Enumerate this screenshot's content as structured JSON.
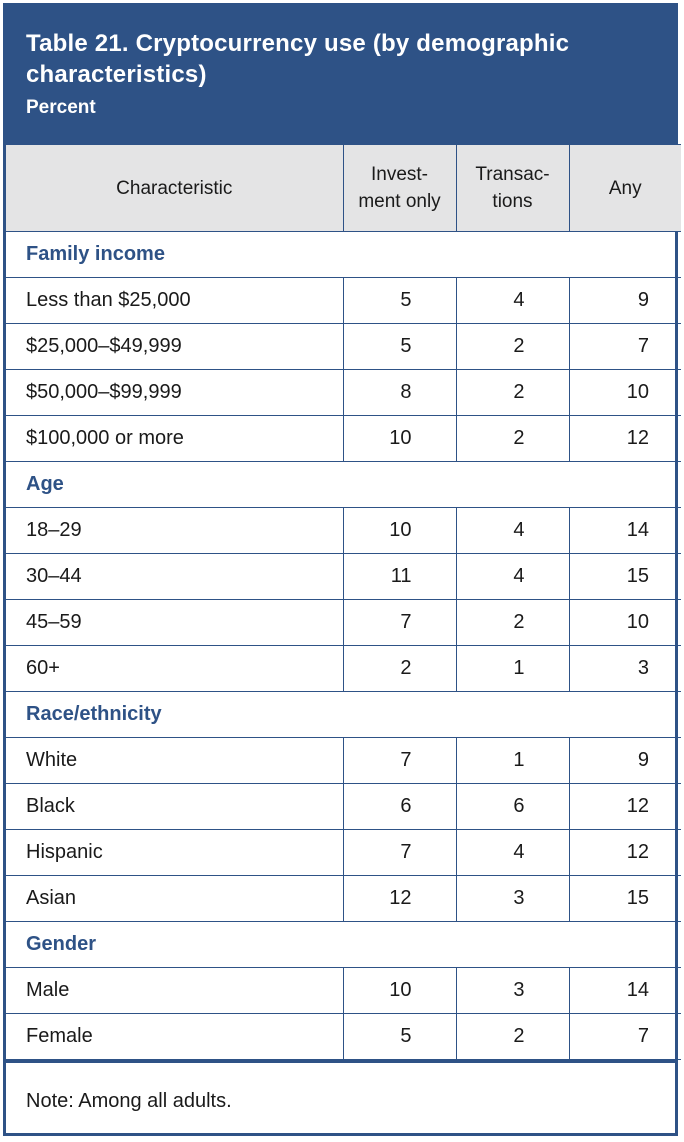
{
  "header": {
    "title": "Table 21. Cryptocurrency use (by demographic characteristics)",
    "subtitle": "Percent"
  },
  "columns": {
    "characteristic": "Characteristic",
    "investment_line1": "Invest-",
    "investment_line2": "ment only",
    "transactions_line1": "Transac-",
    "transactions_line2": "tions",
    "any": "Any"
  },
  "sections": [
    {
      "title": "Family income",
      "rows": [
        {
          "label": "Less than $25,000",
          "investment": "5",
          "transactions": "4",
          "any": "9"
        },
        {
          "label": "$25,000–$49,999",
          "investment": "5",
          "transactions": "2",
          "any": "7"
        },
        {
          "label": "$50,000–$99,999",
          "investment": "8",
          "transactions": "2",
          "any": "10"
        },
        {
          "label": "$100,000 or more",
          "investment": "10",
          "transactions": "2",
          "any": "12"
        }
      ]
    },
    {
      "title": "Age",
      "rows": [
        {
          "label": "18–29",
          "investment": "10",
          "transactions": "4",
          "any": "14"
        },
        {
          "label": "30–44",
          "investment": "11",
          "transactions": "4",
          "any": "15"
        },
        {
          "label": "45–59",
          "investment": "7",
          "transactions": "2",
          "any": "10"
        },
        {
          "label": "60+",
          "investment": "2",
          "transactions": "1",
          "any": "3"
        }
      ]
    },
    {
      "title": "Race/ethnicity",
      "rows": [
        {
          "label": "White",
          "investment": "7",
          "transactions": "1",
          "any": "9"
        },
        {
          "label": "Black",
          "investment": "6",
          "transactions": "6",
          "any": "12"
        },
        {
          "label": "Hispanic",
          "investment": "7",
          "transactions": "4",
          "any": "12"
        },
        {
          "label": "Asian",
          "investment": "12",
          "transactions": "3",
          "any": "15"
        }
      ]
    },
    {
      "title": "Gender",
      "rows": [
        {
          "label": "Male",
          "investment": "10",
          "transactions": "3",
          "any": "14"
        },
        {
          "label": "Female",
          "investment": "5",
          "transactions": "2",
          "any": "7"
        }
      ]
    }
  ],
  "note": "Note: Among all adults.",
  "colors": {
    "accent": "#2e5286",
    "header_bg": "#e4e4e5"
  }
}
